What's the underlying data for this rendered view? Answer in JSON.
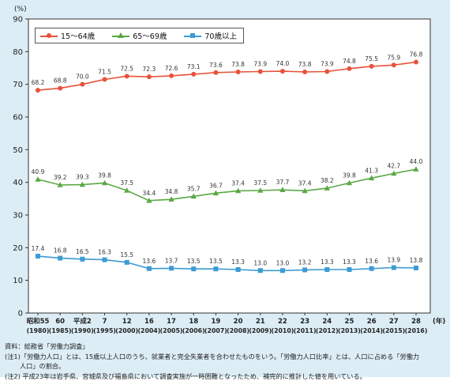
{
  "chart_data": {
    "type": "line",
    "ylabel": "(%)",
    "xlabel": "(年)",
    "ylim": [
      0,
      90
    ],
    "yticks": [
      0,
      10,
      20,
      30,
      40,
      50,
      60,
      70,
      80,
      90
    ],
    "grid": false,
    "legend": "top-left",
    "x_era": [
      "昭和55",
      "60",
      "平成2",
      "7",
      "12",
      "16",
      "17",
      "18",
      "19",
      "20",
      "21",
      "22",
      "23",
      "24",
      "25",
      "26",
      "27",
      "28"
    ],
    "x_western": [
      "(1980)",
      "(1985)",
      "(1990)",
      "(1995)",
      "(2000)",
      "(2004)",
      "(2005)",
      "(2006)",
      "(2007)",
      "(2008)",
      "(2009)",
      "(2010)",
      "(2011)",
      "(2012)",
      "(2013)",
      "(2014)",
      "(2015)",
      "(2016)"
    ],
    "series": [
      {
        "name": "15～64歳",
        "marker": "circle",
        "color": "#e8523a",
        "values": [
          68.2,
          68.8,
          70.0,
          71.5,
          72.5,
          72.3,
          72.6,
          73.1,
          73.6,
          73.8,
          73.9,
          74.0,
          73.8,
          73.9,
          74.8,
          75.5,
          75.9,
          76.8
        ]
      },
      {
        "name": "65～69歳",
        "marker": "triangle",
        "color": "#5aa845",
        "values": [
          40.9,
          39.2,
          39.3,
          39.8,
          37.5,
          34.4,
          34.8,
          35.7,
          36.7,
          37.4,
          37.5,
          37.7,
          37.4,
          38.2,
          39.8,
          41.3,
          42.7,
          44.0
        ]
      },
      {
        "name": "70歳以上",
        "marker": "square",
        "color": "#3c9bd3",
        "values": [
          17.4,
          16.8,
          16.5,
          16.3,
          15.5,
          13.6,
          13.7,
          13.5,
          13.5,
          13.3,
          13.0,
          13.0,
          13.2,
          13.3,
          13.3,
          13.6,
          13.9,
          13.8
        ]
      }
    ]
  },
  "notes": {
    "source": "資料：総務省「労働力調査」",
    "note1a": "(注1)「労働力人口」とは、15歳以上人口のうち、就業者と完全失業者を合わせたものをいう。「労働力人口比率」とは、人口に占める「労働力",
    "note1b": "　　 人口」の割合。",
    "note2": "(注2) 平成23年は岩手県、宮城県及び福島県において調査実施が一時困難となったため、補完的に推計した値を用いている。"
  }
}
